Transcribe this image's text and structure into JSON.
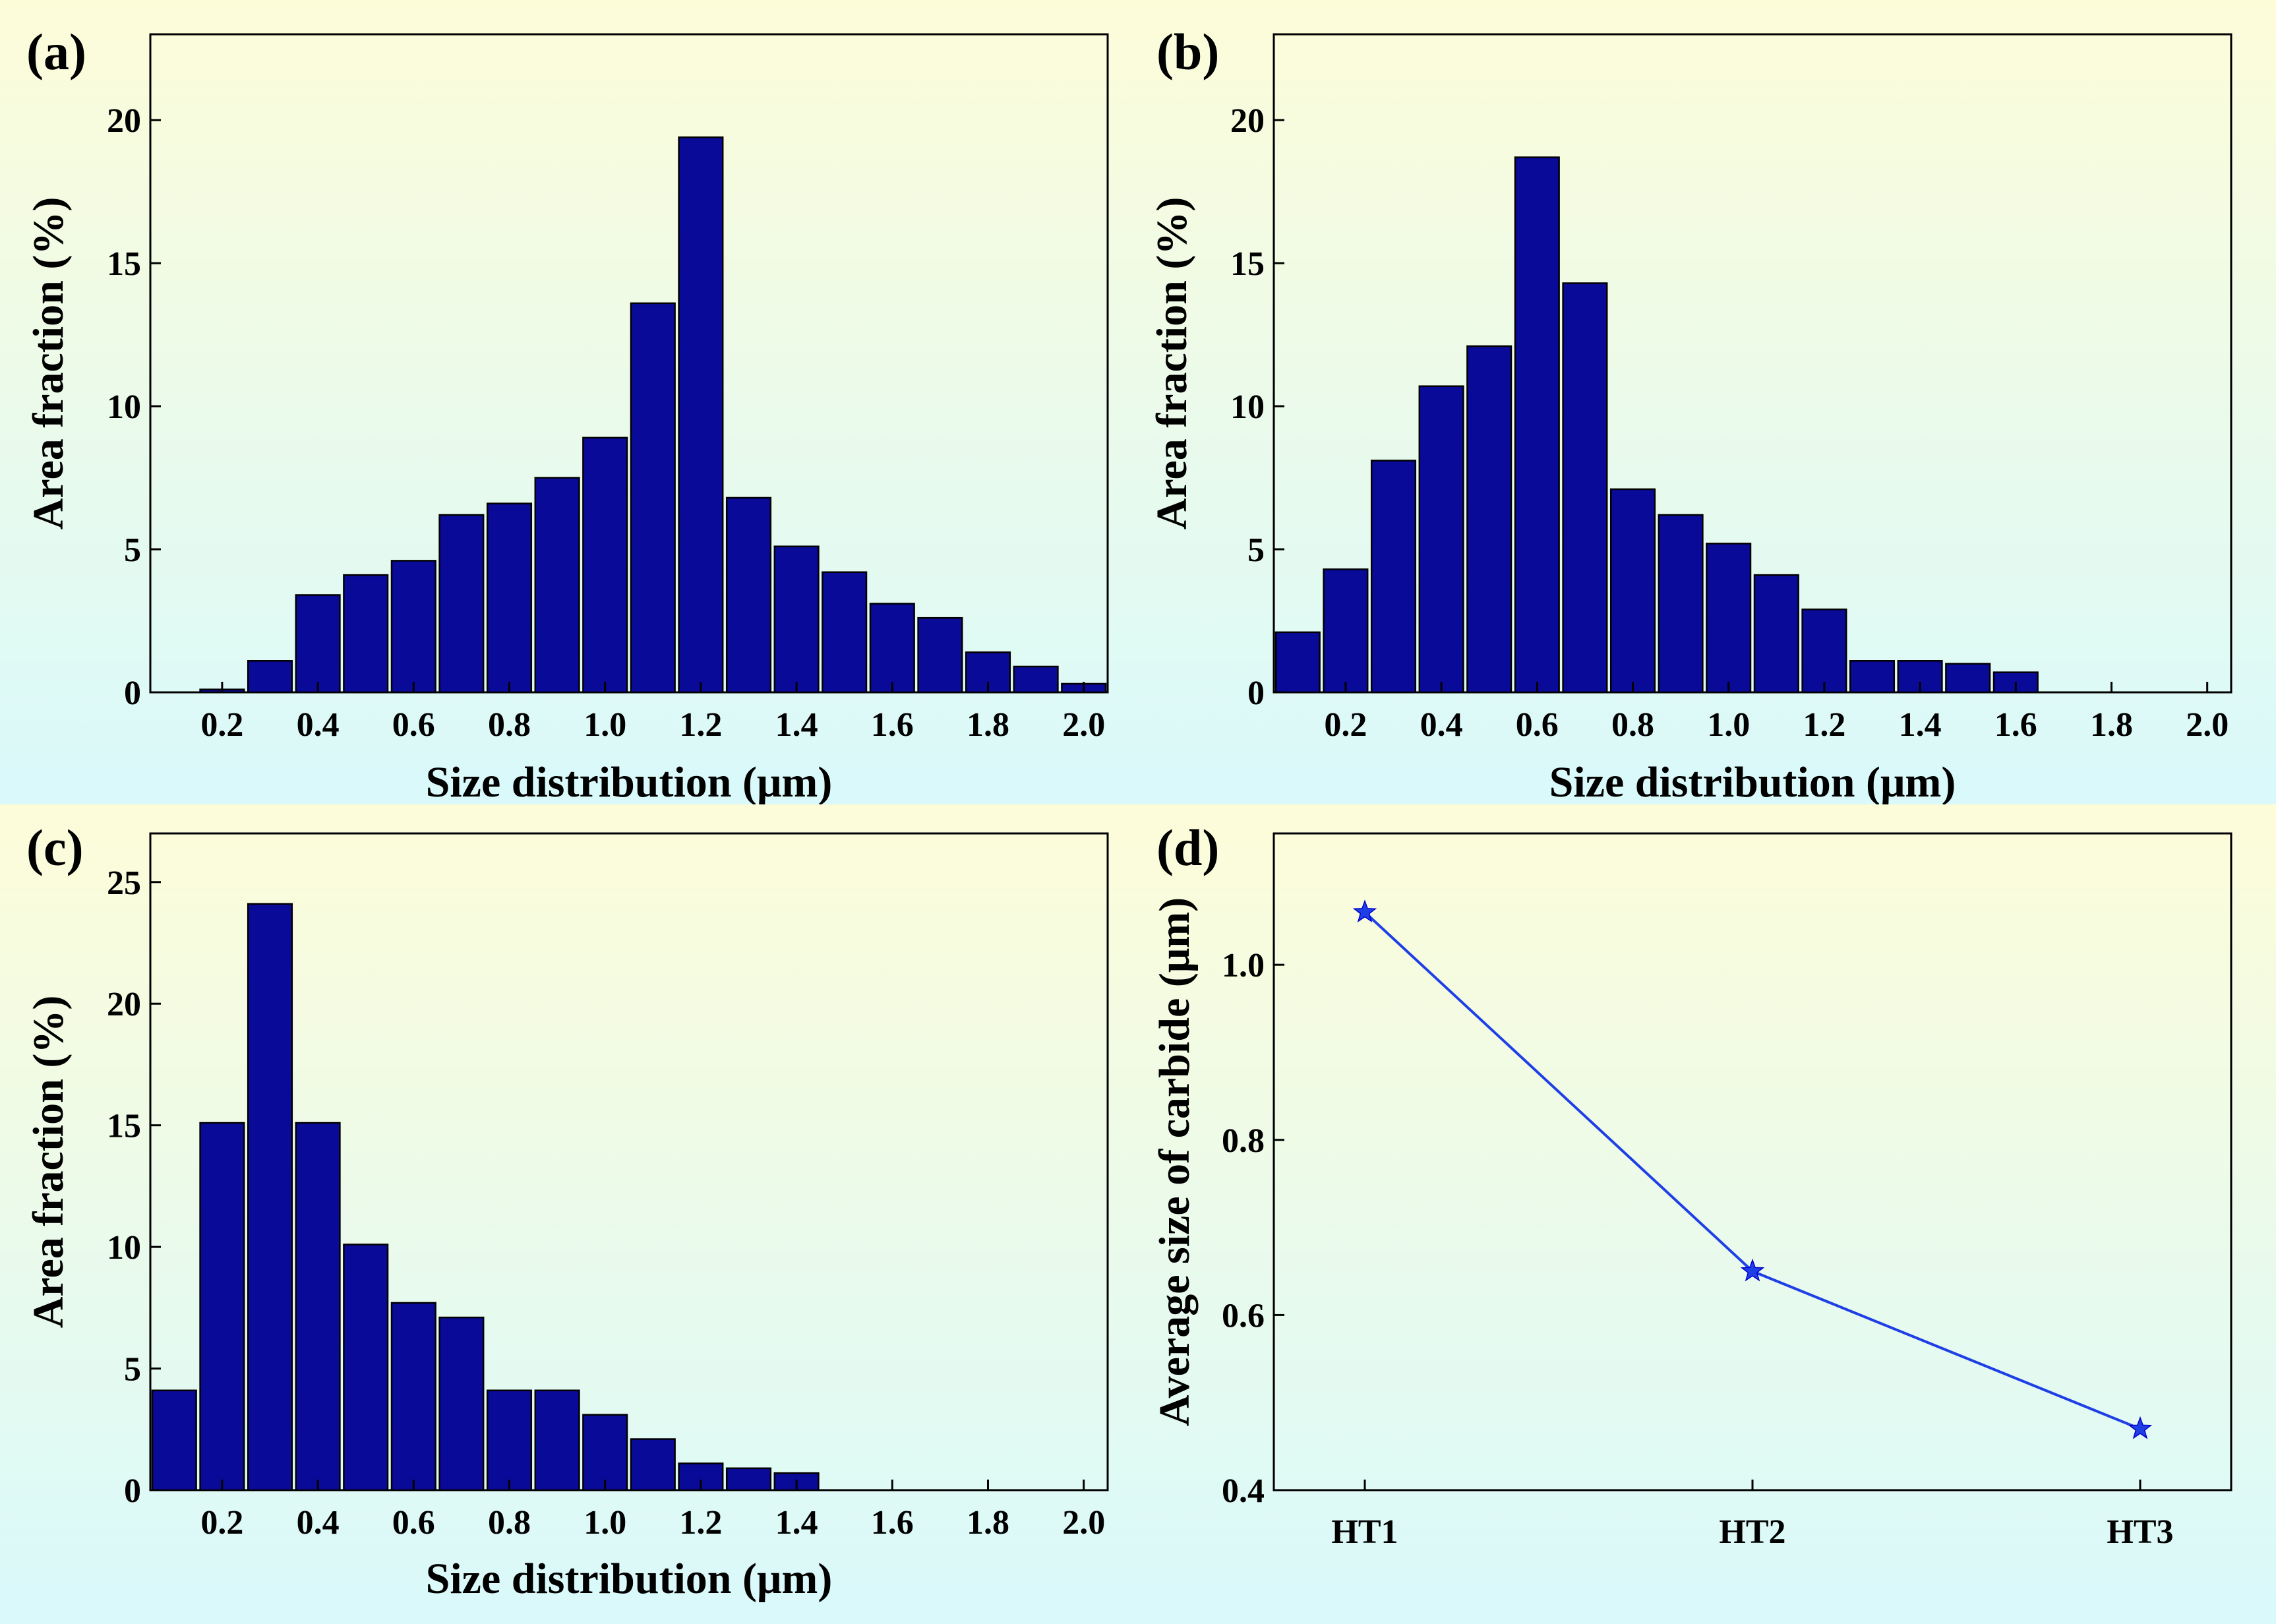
{
  "theme": {
    "bar_fill": "#0a0a99",
    "line_color": "#1f3fe6",
    "bg_top": "#fdfcd9",
    "bg_bottom": "#d9f9fb"
  },
  "chart_data": [
    {
      "id": "a",
      "type": "bar",
      "panel_label": "(a)",
      "xlabel": "Size distribution (μm)",
      "ylabel": "Area fraction (%)",
      "xlim": [
        0.05,
        2.05
      ],
      "ylim": [
        0,
        23
      ],
      "xticks": [
        "0.2",
        "0.4",
        "0.6",
        "0.8",
        "1.0",
        "1.2",
        "1.4",
        "1.6",
        "1.8",
        "2.0"
      ],
      "yticks": [
        "0",
        "5",
        "10",
        "15",
        "20"
      ],
      "bin_width": 0.1,
      "x": [
        0.2,
        0.3,
        0.4,
        0.5,
        0.6,
        0.7,
        0.8,
        0.9,
        1.0,
        1.1,
        1.2,
        1.3,
        1.4,
        1.5,
        1.6,
        1.7,
        1.8,
        1.9,
        2.0
      ],
      "values": [
        0.1,
        1.1,
        3.4,
        4.1,
        4.6,
        6.2,
        6.6,
        7.5,
        8.9,
        13.6,
        19.4,
        6.8,
        5.1,
        4.2,
        3.1,
        2.6,
        1.4,
        0.9,
        0.3
      ]
    },
    {
      "id": "b",
      "type": "bar",
      "panel_label": "(b)",
      "xlabel": "Size distribution (μm)",
      "ylabel": "Area fraction (%)",
      "xlim": [
        0.05,
        2.05
      ],
      "ylim": [
        0,
        23
      ],
      "xticks": [
        "0.2",
        "0.4",
        "0.6",
        "0.8",
        "1.0",
        "1.2",
        "1.4",
        "1.6",
        "1.8",
        "2.0"
      ],
      "yticks": [
        "0",
        "5",
        "10",
        "15",
        "20"
      ],
      "bin_width": 0.1,
      "x": [
        0.1,
        0.2,
        0.3,
        0.4,
        0.5,
        0.6,
        0.7,
        0.8,
        0.9,
        1.0,
        1.1,
        1.2,
        1.3,
        1.4,
        1.5,
        1.6
      ],
      "values": [
        2.1,
        4.3,
        8.1,
        10.7,
        12.1,
        18.7,
        14.3,
        7.1,
        6.2,
        5.2,
        4.1,
        2.9,
        1.1,
        1.1,
        1.0,
        0.7
      ]
    },
    {
      "id": "c",
      "type": "bar",
      "panel_label": "(c)",
      "xlabel": "Size distribution (μm)",
      "ylabel": "Area fraction (%)",
      "xlim": [
        0.05,
        2.05
      ],
      "ylim": [
        0,
        27
      ],
      "xticks": [
        "0.2",
        "0.4",
        "0.6",
        "0.8",
        "1.0",
        "1.2",
        "1.4",
        "1.6",
        "1.8",
        "2.0"
      ],
      "yticks": [
        "0",
        "5",
        "10",
        "15",
        "20",
        "25"
      ],
      "bin_width": 0.1,
      "x": [
        0.1,
        0.2,
        0.3,
        0.4,
        0.5,
        0.6,
        0.7,
        0.8,
        0.9,
        1.0,
        1.1,
        1.2,
        1.3,
        1.4
      ],
      "values": [
        4.1,
        15.1,
        24.1,
        15.1,
        10.1,
        7.7,
        7.1,
        4.1,
        4.1,
        3.1,
        2.1,
        1.1,
        0.9,
        0.7
      ]
    },
    {
      "id": "d",
      "type": "line",
      "panel_label": "(d)",
      "xlabel": "",
      "ylabel": "Average size of carbide (μm)",
      "ylim": [
        0.4,
        1.15
      ],
      "categories": [
        "HT1",
        "HT2",
        "HT3"
      ],
      "yticks": [
        "0.4",
        "0.6",
        "0.8",
        "1.0"
      ],
      "values": [
        1.06,
        0.65,
        0.47
      ],
      "marker": "star"
    }
  ]
}
